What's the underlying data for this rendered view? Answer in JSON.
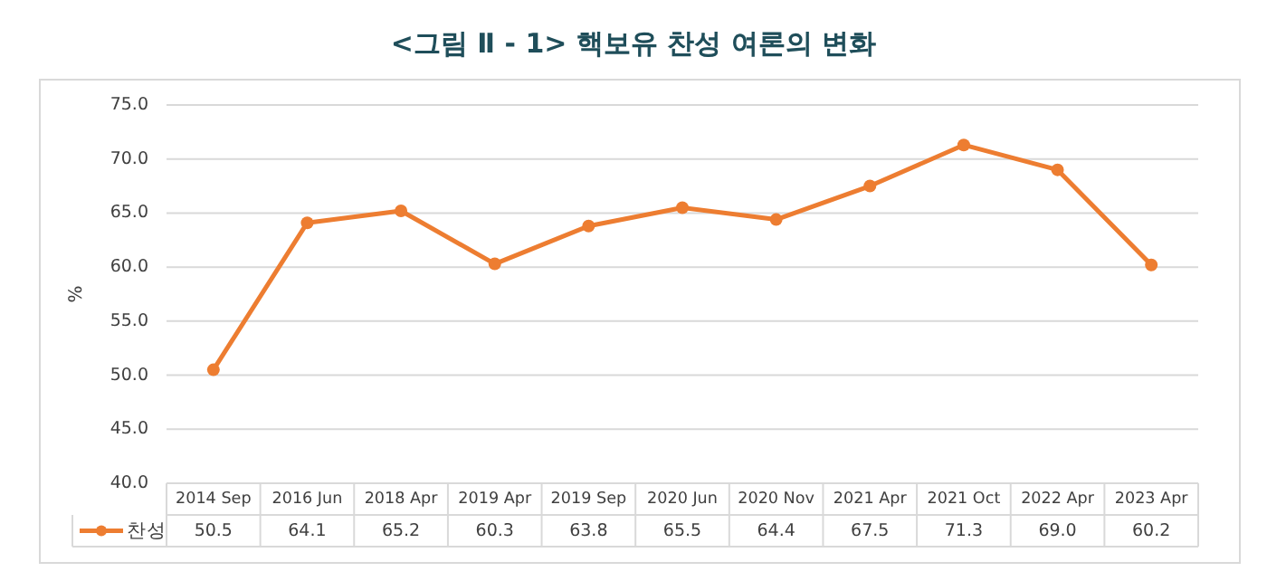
{
  "chart_data": {
    "type": "line",
    "title": "<그림 Ⅱ - 1> 핵보유 찬성 여론의 변화",
    "ylabel": "%",
    "categories": [
      "2014 Sep",
      "2016 Jun",
      "2018 Apr",
      "2019 Apr",
      "2019 Sep",
      "2020 Jun",
      "2020 Nov",
      "2021 Apr",
      "2021 Oct",
      "2022 Apr",
      "2023 Apr"
    ],
    "series": [
      {
        "name": "찬성",
        "color": "#ed7d31",
        "values": [
          50.5,
          64.1,
          65.2,
          60.3,
          63.8,
          65.5,
          64.4,
          67.5,
          71.3,
          69.0,
          60.2
        ]
      }
    ],
    "ylim": [
      40,
      75
    ],
    "yticks": [
      {
        "value": 40,
        "label": "40.0"
      },
      {
        "value": 45,
        "label": "45.0"
      },
      {
        "value": 50,
        "label": "50.0"
      },
      {
        "value": 55,
        "label": "55.0"
      },
      {
        "value": 60,
        "label": "60.0"
      },
      {
        "value": 65,
        "label": "65.0"
      },
      {
        "value": 70,
        "label": "70.0"
      },
      {
        "value": 75,
        "label": "75.0"
      }
    ],
    "value_labels": [
      "50.5",
      "64.1",
      "65.2",
      "60.3",
      "63.8",
      "65.5",
      "64.4",
      "67.5",
      "71.3",
      "69.0",
      "60.2"
    ],
    "grid": "y",
    "legend": "bottom",
    "marker": "circle",
    "line_style": "solid"
  }
}
